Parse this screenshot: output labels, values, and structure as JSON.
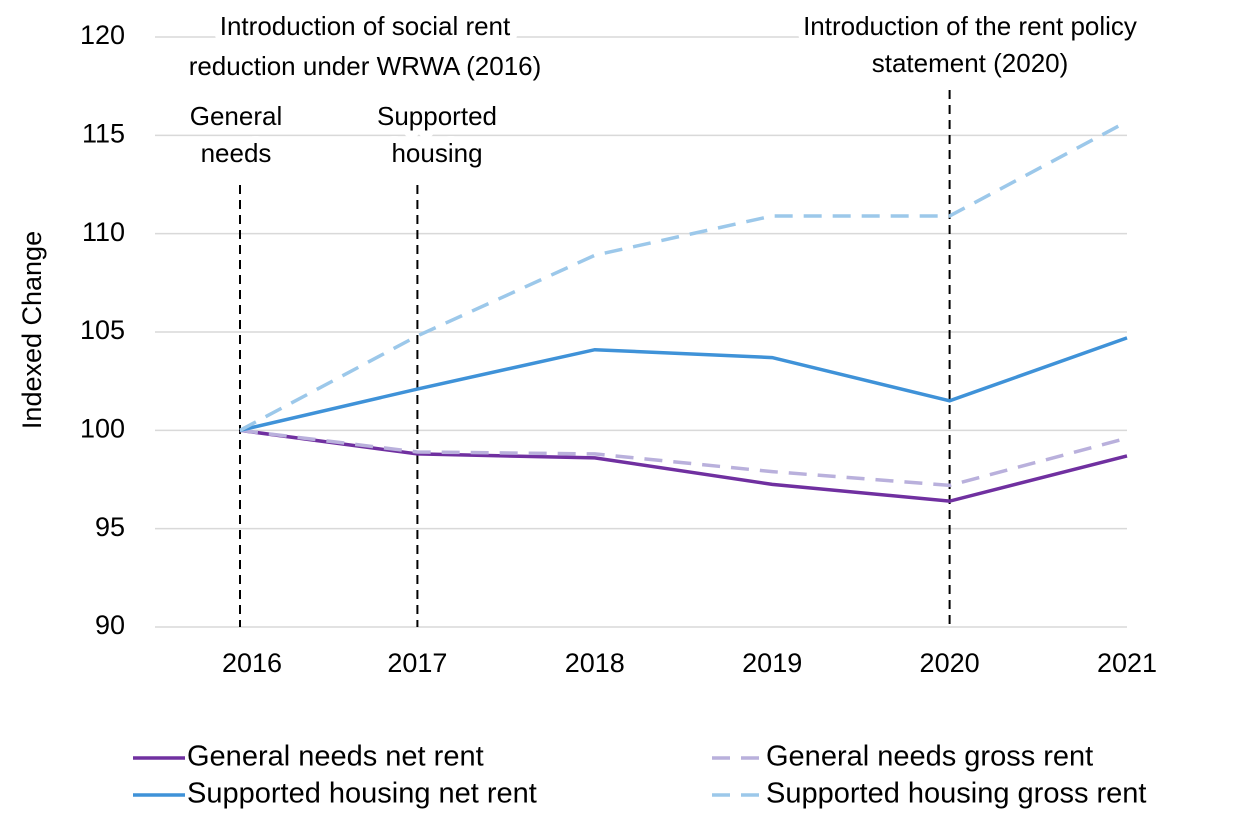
{
  "chart_data": {
    "type": "line",
    "y_label": "Indexed Change",
    "categories": [
      "2016",
      "2017",
      "2018",
      "2019",
      "2020",
      "2021"
    ],
    "series": [
      {
        "name": "General needs net rent",
        "color": "#7030a0",
        "dashed": false,
        "values": [
          100,
          98.8,
          98.6,
          97.25,
          96.4,
          98.7
        ]
      },
      {
        "name": "General needs gross rent",
        "color": "#b9b0dc",
        "dashed": true,
        "values": [
          100,
          98.9,
          98.8,
          97.9,
          97.2,
          99.6
        ]
      },
      {
        "name": "Supported housing net rent",
        "color": "#3f92d8",
        "dashed": false,
        "values": [
          100,
          102.1,
          104.1,
          103.7,
          101.5,
          104.7
        ]
      },
      {
        "name": "Supported housing gross rent",
        "color": "#9cc8ea",
        "dashed": true,
        "values": [
          100,
          104.8,
          108.9,
          110.9,
          110.9,
          115.7
        ]
      }
    ],
    "ylim": [
      90,
      120
    ],
    "yticks": [
      90,
      95,
      100,
      105,
      110,
      115,
      120
    ],
    "grid": true,
    "annotations": [
      {
        "text": [
          "Introduction of social rent",
          "reduction under WRWA (2016)"
        ]
      },
      {
        "text": [
          "General",
          "needs"
        ],
        "x": "2016"
      },
      {
        "text": [
          "Supported",
          "housing"
        ],
        "x": "2017"
      },
      {
        "text": [
          "Introduction of the rent policy",
          "statement (2020)"
        ],
        "x": "2020"
      }
    ],
    "legend": "bottom"
  }
}
